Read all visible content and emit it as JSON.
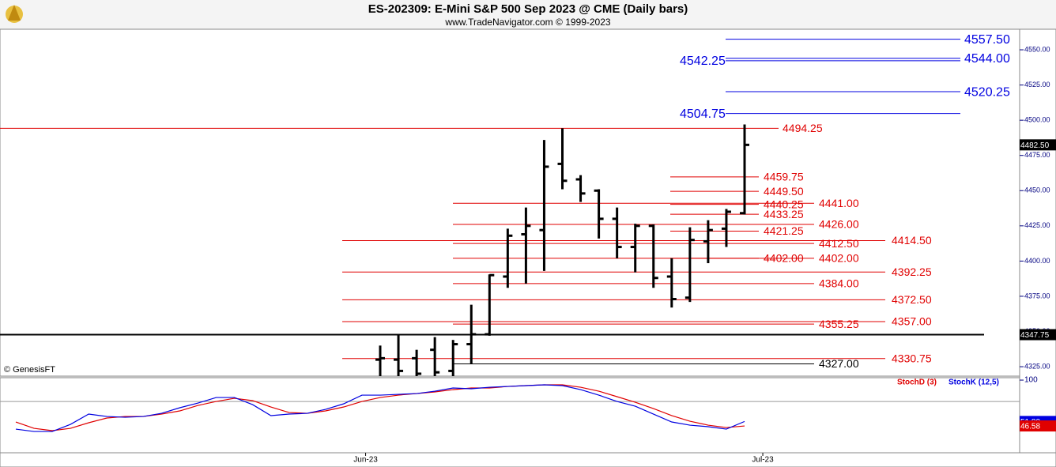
{
  "chart_data": {
    "type": "ohlc",
    "title": "ES-202309:  E-Mini S&P 500 Sep 2023 @ CME  (Daily bars)",
    "subtitle": "www.TradeNavigator.com © 1999-2023",
    "watermark": "© GenesisFT",
    "color": "#000000",
    "categories": [
      null,
      null,
      null,
      null,
      null,
      null,
      null,
      null,
      null,
      null,
      null,
      null,
      null,
      null,
      null,
      null,
      null,
      null,
      null,
      null,
      null,
      null,
      null,
      null,
      null,
      null,
      null,
      null,
      null,
      null,
      null,
      null,
      null,
      null,
      null,
      null,
      null,
      null,
      null,
      null,
      null
    ],
    "open": [
      null,
      null,
      null,
      null,
      null,
      null,
      null,
      null,
      null,
      null,
      null,
      null,
      null,
      null,
      null,
      null,
      null,
      null,
      null,
      null,
      4330,
      4330,
      4331,
      4337,
      4322,
      4341,
      4348,
      4389,
      4419,
      4422,
      4469,
      4458,
      4450,
      4430,
      4410,
      4425,
      4389,
      4374,
      4414,
      4423,
      4434
    ],
    "high": [
      null,
      null,
      null,
      null,
      null,
      null,
      null,
      null,
      null,
      null,
      null,
      null,
      null,
      null,
      null,
      null,
      null,
      null,
      null,
      null,
      4340,
      4348,
      4337,
      4346,
      4344,
      4369,
      4390.5,
      4423,
      4438,
      4486,
      4494.25,
      4461,
      4451,
      4438,
      4426.5,
      4426,
      4402,
      4424,
      4429,
      4437,
      4497
    ],
    "low": [
      null,
      null,
      null,
      null,
      null,
      null,
      null,
      null,
      null,
      null,
      null,
      null,
      null,
      null,
      null,
      null,
      null,
      null,
      null,
      null,
      4312,
      4312,
      4316,
      4318,
      4316,
      4327,
      4347,
      4381,
      4384,
      4393,
      4451,
      4442,
      4416,
      4402,
      4392,
      4381,
      4367,
      4371,
      4398.5,
      4410,
      4433
    ],
    "close": [
      null,
      null,
      null,
      null,
      null,
      null,
      null,
      null,
      null,
      null,
      null,
      null,
      null,
      null,
      null,
      null,
      null,
      null,
      null,
      null,
      4331,
      4322,
      4320,
      4321,
      4341,
      4348,
      4390,
      4418,
      4425,
      4467,
      4457,
      4448,
      4430,
      4410,
      4425,
      4388,
      4373,
      4415,
      4422,
      4435,
      4482.5
    ],
    "last_close_label": "4482.50",
    "ylim": [
      4318.3,
      4564.6
    ],
    "yticks": [
      {
        "value": 4325,
        "label": "4325.00"
      },
      {
        "value": 4350,
        "label": "4350.00"
      },
      {
        "value": 4375,
        "label": "4375.00"
      },
      {
        "value": 4400,
        "label": "4400.00"
      },
      {
        "value": 4425,
        "label": "4425.00"
      },
      {
        "value": 4450,
        "label": "4450.00"
      },
      {
        "value": 4475,
        "label": "4475.00"
      },
      {
        "value": 4500,
        "label": "4500.00"
      },
      {
        "value": 4525,
        "label": "4525.00"
      },
      {
        "value": 4550,
        "label": "4550.00"
      }
    ],
    "xticks": [
      {
        "value": 19.2,
        "label": "Jun-23"
      },
      {
        "value": 41,
        "label": "Jul-23"
      }
    ],
    "levels": [
      {
        "color": "#e00000",
        "values": [
          4494.25
        ],
        "value_labels": [
          "4494.25"
        ]
      },
      {
        "color": "#e00000",
        "values": [
          4459.75,
          4449.5,
          4440.25,
          4433.25,
          4421.25,
          4402.0
        ],
        "value_labels": [
          "4459.75",
          "4449.50",
          "4440.25",
          "4433.25",
          "4421.25",
          "4402.00"
        ]
      },
      {
        "color": "#e00000",
        "values": [
          4441.0,
          4426.0,
          4412.5,
          4402.0,
          4384.0,
          4355.25
        ],
        "value_labels": [
          "4441.00",
          "4426.00",
          "4412.50",
          "4402.00",
          "4384.00",
          "4355.25"
        ]
      },
      {
        "color": "#e00000",
        "values": [
          4414.5,
          4392.25,
          4372.5,
          4357.0,
          4330.75
        ],
        "value_labels": [
          "4414.50",
          "4392.25",
          "4372.50",
          "4357.00",
          "4330.75"
        ]
      },
      {
        "color": "#000000",
        "values": [
          4327.0
        ],
        "value_labels": [
          "4327.00"
        ]
      },
      {
        "color": "#0000e0",
        "values": [
          4557.5,
          4544.0,
          4520.25
        ],
        "value_labels": [
          "4557.50",
          "4544.00",
          "4520.25"
        ]
      },
      {
        "color": "#0000e0",
        "values": [
          4542.25,
          4504.75
        ],
        "value_labels": [
          "4542.25",
          "4504.75"
        ]
      },
      {
        "color": "#000000",
        "values": [
          4347.75
        ],
        "value_labels": [
          "4347.75"
        ]
      }
    ],
    "lower": {
      "type": "line",
      "ylim": [
        15.3,
        102.8
      ],
      "yticks": [
        100
      ],
      "ref_line": 75,
      "series": [
        {
          "name": "StochD (3)",
          "color": "#e00000",
          "last_label": "46.58",
          "values": [
            51.2,
            43.8,
            41.1,
            43.8,
            50.3,
            55.8,
            57.6,
            57.6,
            60.4,
            64.1,
            70.5,
            75.1,
            78.8,
            76.1,
            68.7,
            62.2,
            61.3,
            64.1,
            68.7,
            75.1,
            79.7,
            82.5,
            84.3,
            86.2,
            88.9,
            90.8,
            90.8,
            92.6,
            93.6,
            94.5,
            94.5,
            91.7,
            87.1,
            80.7,
            74.2,
            66.8,
            58.6,
            52.1,
            47.5,
            44.7,
            46.58
          ]
        },
        {
          "name": "StochK (12,5)",
          "color": "#0000e0",
          "last_label": "51.80",
          "values": [
            42.9,
            40.1,
            40.1,
            48.4,
            60.4,
            57.6,
            56.7,
            57.6,
            61.3,
            67.8,
            73.3,
            79.7,
            79.7,
            71.4,
            58.6,
            60.4,
            61.3,
            65.9,
            72.4,
            82.5,
            82.5,
            83.4,
            84.3,
            87.1,
            90.8,
            89.9,
            91.7,
            92.6,
            93.6,
            94.5,
            93.6,
            88.9,
            82.5,
            75.1,
            69.6,
            60.4,
            51.2,
            47.5,
            45.7,
            42.9,
            51.8
          ]
        }
      ]
    }
  }
}
